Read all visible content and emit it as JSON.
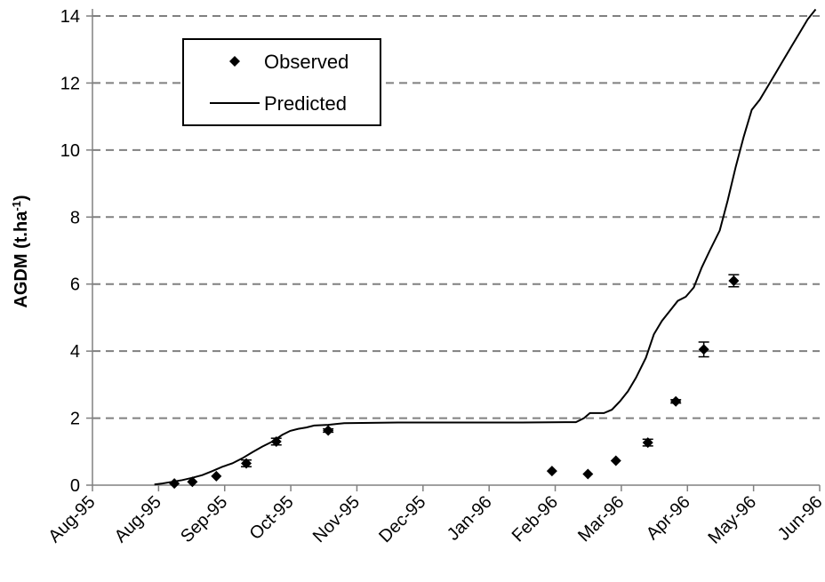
{
  "chart_data": {
    "type": "scatter",
    "ylabel": "AGDM (t.ha",
    "ylabel_sup": "-1",
    "ylabel_suffix": ")",
    "xlabel": "",
    "ylim": [
      0,
      14
    ],
    "yticks": [
      0,
      2,
      4,
      6,
      8,
      10,
      12,
      14
    ],
    "grid": "horizontal dashed",
    "legend_position": "top-left",
    "x_tick_labels": [
      "Aug-95",
      "Aug-95",
      "Sep-95",
      "Oct-95",
      "Nov-95",
      "Dec-95",
      "Jan-96",
      "Feb-96",
      "Mar-96",
      "Apr-96",
      "May-96",
      "Jun-96"
    ],
    "series": [
      {
        "name": "Observed",
        "kind": "markers",
        "marker": "diamond",
        "x": [
          "1995-08-11",
          "1995-08-20",
          "1995-09-01",
          "1995-09-16",
          "1995-10-01",
          "1995-10-27",
          "1996-02-16",
          "1996-03-05",
          "1996-03-19",
          "1996-04-04",
          "1996-04-18",
          "1996-05-02",
          "1996-05-17"
        ],
        "y": [
          0.05,
          0.1,
          0.27,
          0.65,
          1.3,
          1.63,
          0.42,
          0.33,
          0.73,
          1.27,
          2.5,
          4.05,
          6.1
        ],
        "error": [
          0,
          0,
          0,
          0.1,
          0.1,
          0.05,
          0,
          0,
          0,
          0.1,
          0.05,
          0.22,
          0.18
        ]
      },
      {
        "name": "Predicted",
        "kind": "line",
        "x": [
          "1995-08-01",
          "1995-08-05",
          "1995-08-10",
          "1995-08-15",
          "1995-08-20",
          "1995-08-25",
          "1995-08-30",
          "1995-09-04",
          "1995-09-09",
          "1995-09-14",
          "1995-09-19",
          "1995-09-24",
          "1995-09-29",
          "1995-10-04",
          "1995-10-08",
          "1995-10-12",
          "1995-10-16",
          "1995-10-20",
          "1995-10-27",
          "1995-11-04",
          "1995-12-01",
          "1996-01-01",
          "1996-02-01",
          "1996-02-28",
          "1996-03-03",
          "1996-03-06",
          "1996-03-10",
          "1996-03-13",
          "1996-03-17",
          "1996-03-21",
          "1996-03-25",
          "1996-03-29",
          "1996-04-03",
          "1996-04-07",
          "1996-04-11",
          "1996-04-15",
          "1996-04-19",
          "1996-04-23",
          "1996-04-27",
          "1996-05-01",
          "1996-05-05",
          "1996-05-10",
          "1996-05-14",
          "1996-05-18",
          "1996-05-22",
          "1996-05-26",
          "1996-05-30",
          "1996-06-03",
          "1996-06-07",
          "1996-06-11",
          "1996-06-15",
          "1996-06-19",
          "1996-06-23",
          "1996-06-27"
        ],
        "y": [
          0.02,
          0.05,
          0.1,
          0.15,
          0.22,
          0.3,
          0.42,
          0.55,
          0.65,
          0.8,
          0.98,
          1.15,
          1.3,
          1.5,
          1.62,
          1.68,
          1.72,
          1.78,
          1.8,
          1.85,
          1.87,
          1.87,
          1.87,
          1.88,
          2.0,
          2.15,
          2.15,
          2.15,
          2.25,
          2.5,
          2.8,
          3.2,
          3.8,
          4.5,
          4.9,
          5.2,
          5.5,
          5.62,
          5.9,
          6.5,
          7.0,
          7.6,
          8.5,
          9.5,
          10.4,
          11.2,
          11.5,
          11.9,
          12.3,
          12.7,
          13.1,
          13.5,
          13.9,
          14.2
        ]
      }
    ]
  }
}
